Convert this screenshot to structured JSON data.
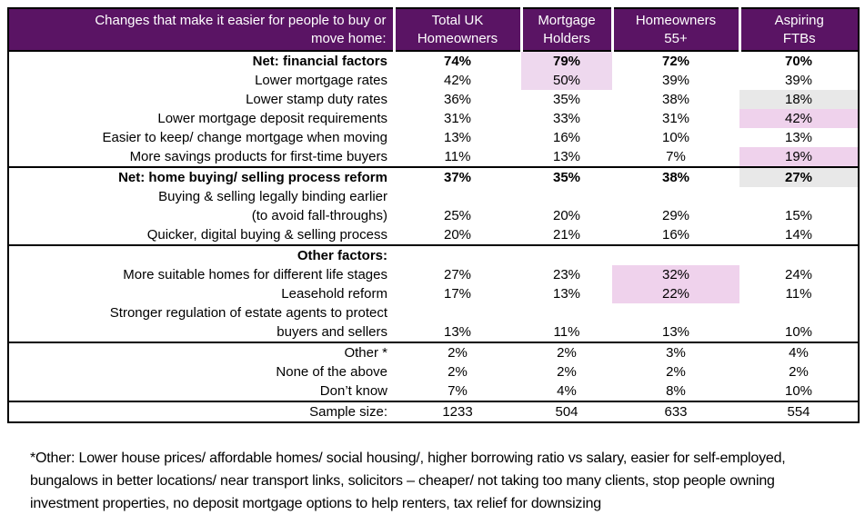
{
  "colors": {
    "header_bg": "#5a1464",
    "header_text": "#ffffff",
    "highlight_pink_light": "#eed8ee",
    "highlight_pink": "#efd2ec",
    "highlight_gray": "#e8e8e8",
    "border": "#000000",
    "text": "#000000"
  },
  "table": {
    "header": {
      "question_lines": [
        "Changes that make it easier for people to buy or",
        "move home:"
      ],
      "columns": [
        {
          "name": "total-uk-homeowners",
          "lines": [
            "Total UK",
            "Homeowners"
          ]
        },
        {
          "name": "mortgage-holders",
          "lines": [
            "Mortgage",
            "Holders"
          ]
        },
        {
          "name": "homeowners-55-plus",
          "lines": [
            "Homeowners",
            "55+"
          ]
        },
        {
          "name": "aspiring-ftbs",
          "lines": [
            "Aspiring",
            "FTBs"
          ]
        }
      ]
    },
    "rows": [
      {
        "label": "Net: financial factors",
        "bold": true,
        "values": [
          "74%",
          "79%",
          "72%",
          "70%"
        ],
        "highlights": [
          null,
          "pink_light",
          null,
          null
        ]
      },
      {
        "label": "Lower mortgage rates",
        "values": [
          "42%",
          "50%",
          "39%",
          "39%"
        ],
        "highlights": [
          null,
          "pink_light",
          null,
          null
        ]
      },
      {
        "label": "Lower stamp duty rates",
        "values": [
          "36%",
          "35%",
          "38%",
          "18%"
        ],
        "highlights": [
          null,
          null,
          null,
          "gray"
        ]
      },
      {
        "label": "Lower mortgage deposit requirements",
        "values": [
          "31%",
          "33%",
          "31%",
          "42%"
        ],
        "highlights": [
          null,
          null,
          null,
          "pink"
        ]
      },
      {
        "label": "Easier to keep/ change mortgage when moving",
        "values": [
          "13%",
          "16%",
          "10%",
          "13%"
        ],
        "highlights": [
          null,
          null,
          null,
          null
        ]
      },
      {
        "label": "More savings products for first-time buyers",
        "values": [
          "11%",
          "13%",
          "7%",
          "19%"
        ],
        "highlights": [
          null,
          null,
          null,
          "pink"
        ]
      },
      {
        "label": "Net: home buying/ selling process reform",
        "bold": true,
        "section_start": true,
        "values": [
          "37%",
          "35%",
          "38%",
          "27%"
        ],
        "highlights": [
          null,
          null,
          null,
          "gray"
        ]
      },
      {
        "label": "Buying & selling legally binding earlier",
        "label2": "(to avoid fall-throughs)",
        "values": [
          "25%",
          "20%",
          "29%",
          "15%"
        ],
        "highlights": [
          null,
          null,
          null,
          null
        ]
      },
      {
        "label": "Quicker, digital buying & selling process",
        "values": [
          "20%",
          "21%",
          "16%",
          "14%"
        ],
        "highlights": [
          null,
          null,
          null,
          null
        ]
      },
      {
        "label": "Other factors:",
        "bold": true,
        "section_start": true,
        "values": [
          "",
          "",
          "",
          ""
        ],
        "highlights": [
          null,
          null,
          null,
          null
        ]
      },
      {
        "label": "More suitable homes for different life stages",
        "values": [
          "27%",
          "23%",
          "32%",
          "24%"
        ],
        "highlights": [
          null,
          null,
          "pink",
          null
        ]
      },
      {
        "label": "Leasehold reform",
        "values": [
          "17%",
          "13%",
          "22%",
          "11%"
        ],
        "highlights": [
          null,
          null,
          "pink",
          null
        ]
      },
      {
        "label": "Stronger regulation of estate agents to protect",
        "label2": "buyers and sellers",
        "values": [
          "13%",
          "11%",
          "13%",
          "10%"
        ],
        "highlights": [
          null,
          null,
          null,
          null
        ]
      },
      {
        "label": "Other *",
        "section_start": true,
        "values": [
          "2%",
          "2%",
          "3%",
          "4%"
        ],
        "highlights": [
          null,
          null,
          null,
          null
        ]
      },
      {
        "label": "None of the above",
        "values": [
          "2%",
          "2%",
          "2%",
          "2%"
        ],
        "highlights": [
          null,
          null,
          null,
          null
        ]
      },
      {
        "label": "Don’t know",
        "values": [
          "7%",
          "4%",
          "8%",
          "10%"
        ],
        "highlights": [
          null,
          null,
          null,
          null
        ]
      },
      {
        "label": "Sample size:",
        "section_start": true,
        "values": [
          "1233",
          "504",
          "633",
          "554"
        ],
        "highlights": [
          null,
          null,
          null,
          null
        ]
      }
    ]
  },
  "footnote": "*Other: Lower house prices/ affordable homes/ social housing/, higher borrowing ratio vs salary, easier for self-employed, bungalows in better locations/ near transport links, solicitors – cheaper/ not taking too many clients, stop people owning investment properties, no deposit mortgage options to help renters, tax relief for downsizing"
}
